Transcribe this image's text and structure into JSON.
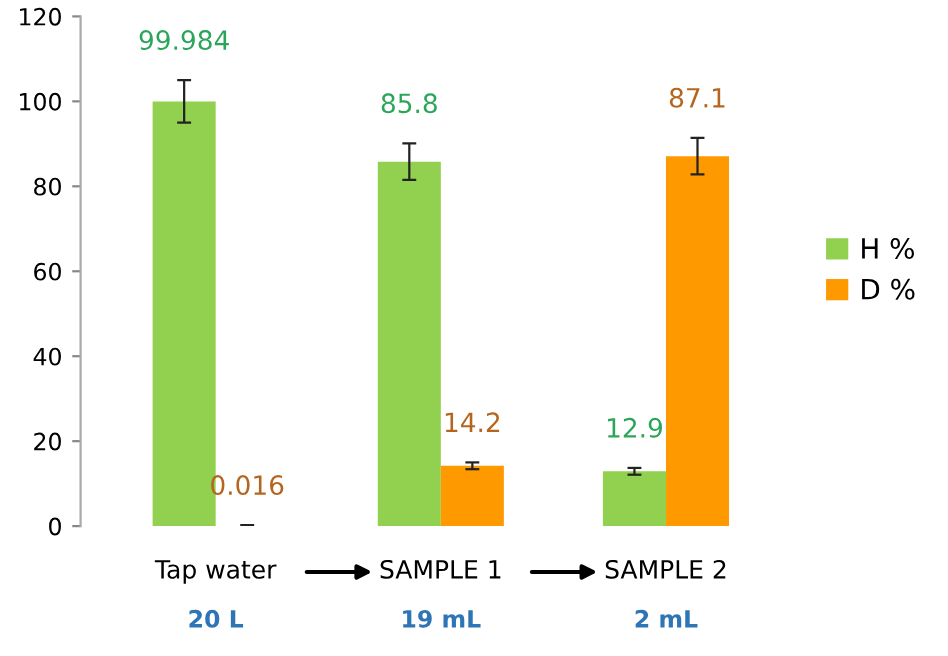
{
  "chart_data": {
    "type": "bar",
    "categories": [
      "Tap water",
      "SAMPLE 1",
      "SAMPLE 2"
    ],
    "series": [
      {
        "name": "H %",
        "color": "#92d050",
        "values": [
          99.984,
          85.8,
          12.9
        ],
        "errors": [
          5,
          4.3,
          0.8
        ]
      },
      {
        "name": "D %",
        "color": "#ff9900",
        "values": [
          0.016,
          14.2,
          87.1
        ],
        "errors": [
          0.2,
          0.8,
          4.3
        ]
      }
    ],
    "ylim": [
      0,
      120
    ],
    "yticks": [
      0,
      20,
      40,
      60,
      80,
      100,
      120
    ],
    "data_labels": true,
    "legend": "right",
    "grid": false,
    "annotations": [
      "20 L",
      "19 mL",
      "2 mL"
    ]
  }
}
